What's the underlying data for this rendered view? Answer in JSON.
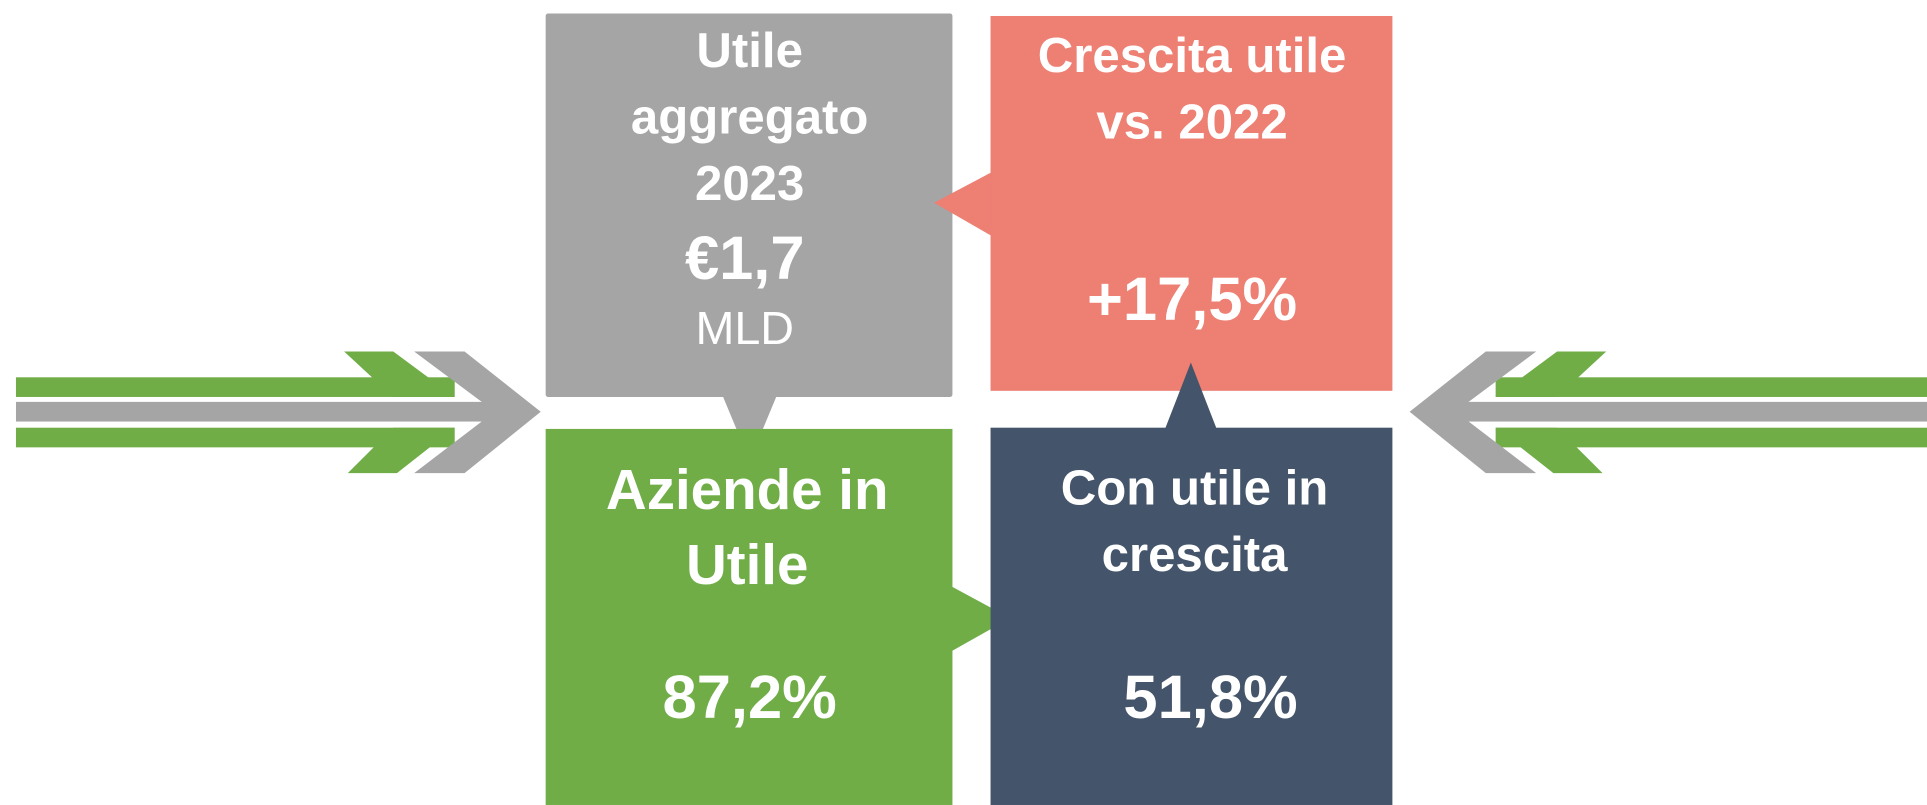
{
  "boxes": [
    {
      "title": [
        "Utile",
        "aggregato",
        "2023"
      ],
      "value": "€1,7",
      "unit": "MLD"
    },
    {
      "title": [
        "Crescita utile",
        "vs. 2022"
      ],
      "value": "+17,5%"
    },
    {
      "title": [
        "Aziende in",
        "Utile"
      ],
      "value": "87,2%"
    },
    {
      "title": [
        "Con utile in",
        "crescita"
      ],
      "value": "51,8%"
    }
  ]
}
